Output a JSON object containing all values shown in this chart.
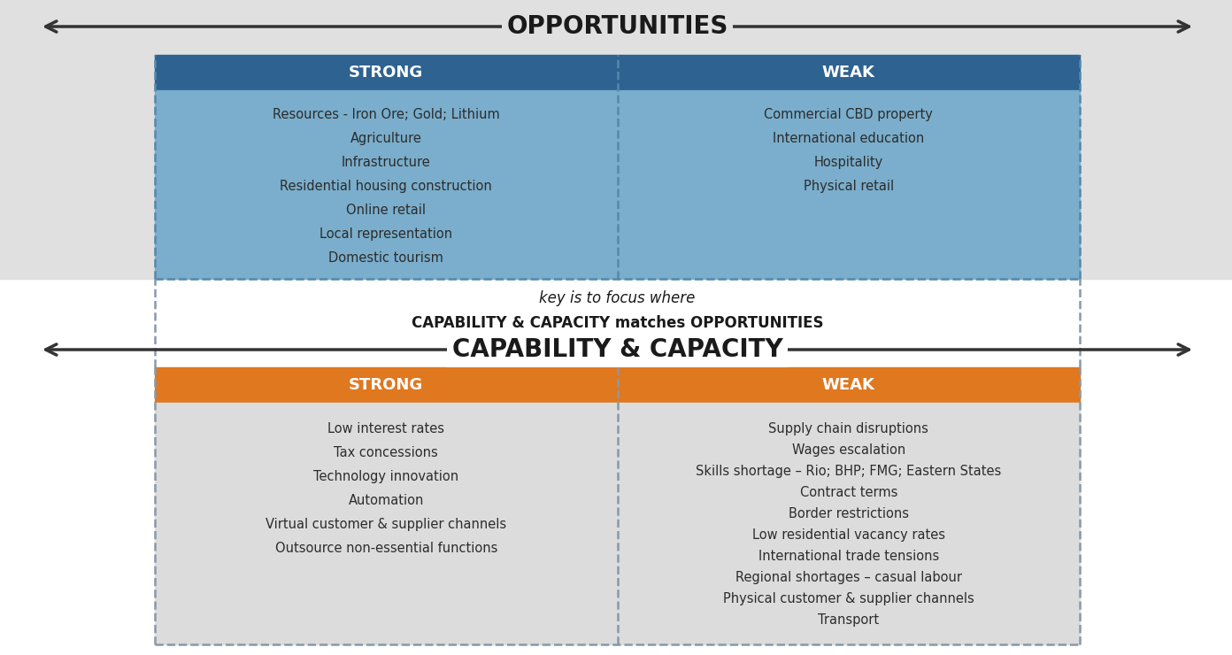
{
  "bg_color": "#e0e0e0",
  "white": "#ffffff",
  "blue_header": "#2e6291",
  "blue_cell": "#7aaecc",
  "orange_header": "#e07820",
  "gray_cell": "#dcdcdc",
  "dark_text": "#2c2c2c",
  "opportunities_label": "OPPORTUNITIES",
  "capability_label": "CAPABILITY & CAPACITY",
  "middle_text_line1": "key is to focus where",
  "middle_text_line2": "CAPABILITY & CAPACITY matches OPPORTUNITIES",
  "strong_label": "STRONG",
  "weak_label": "WEAK",
  "opp_strong_items": [
    "Resources - Iron Ore; Gold; Lithium",
    "Agriculture",
    "Infrastructure",
    "Residential housing construction",
    "Online retail",
    "Local representation",
    "Domestic tourism"
  ],
  "opp_weak_items": [
    "Commercial CBD property",
    "International education",
    "Hospitality",
    "Physical retail"
  ],
  "cap_strong_items": [
    "Low interest rates",
    "Tax concessions",
    "Technology innovation",
    "Automation",
    "Virtual customer & supplier channels",
    "Outsource non-essential functions"
  ],
  "cap_weak_items": [
    "Supply chain disruptions",
    "Wages escalation",
    "Skills shortage – Rio; BHP; FMG; Eastern States",
    "Contract terms",
    "Border restrictions",
    "Low residential vacancy rates",
    "International trade tensions",
    "Regional shortages – casual labour",
    "Physical customer & supplier channels",
    "Transport"
  ],
  "fig_width": 13.92,
  "fig_height": 7.4,
  "dpi": 100
}
